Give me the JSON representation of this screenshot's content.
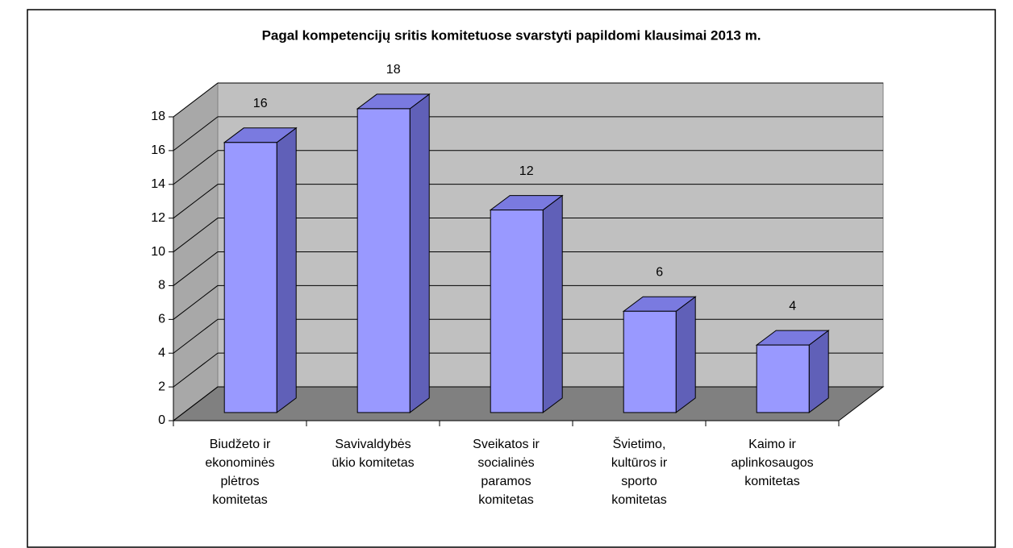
{
  "chart_data": {
    "type": "bar3d",
    "title": "Pagal kompetencijų sritis komitetuose svarstyti papildomi klausimai 2013 m.",
    "categories": [
      "Biudžeto ir\nekonominės\nplėtros\nkomitetas",
      "Savivaldybės\nūkio komitetas",
      "Sveikatos ir\nsocialinės\nparamos\nkomitetas",
      "Švietimo,\nkultūros ir\nsporto\nkomitetas",
      "Kaimo ir\naplinkosaugos\nkomitetas"
    ],
    "values": [
      16,
      18,
      12,
      6,
      4
    ],
    "color": "#9999ff",
    "ylim": [
      0,
      18
    ],
    "yticks": [
      0,
      2,
      4,
      6,
      8,
      10,
      12,
      14,
      16,
      18
    ],
    "grid": true
  }
}
